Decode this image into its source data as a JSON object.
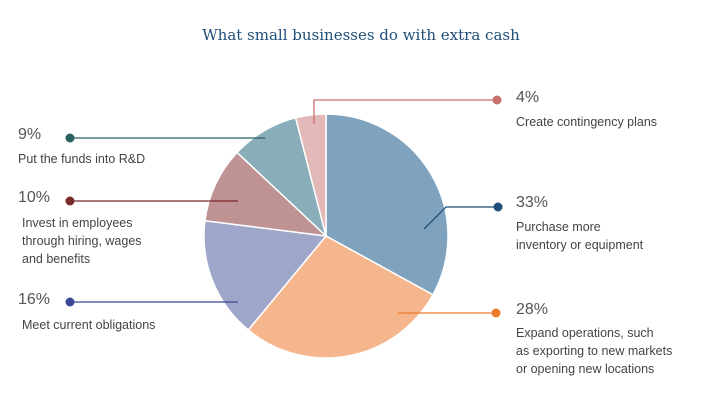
{
  "chart_data": {
    "type": "pie",
    "title": "What small businesses do with extra cash",
    "slices": [
      {
        "label": "Purchase more\ninventory or equipment",
        "value": 33,
        "pct_label": "33%",
        "color": "#7fa3bf"
      },
      {
        "label": "Expand operations, such\nas exporting to new markets\nor opening new locations",
        "value": 28,
        "pct_label": "28%",
        "color": "#f5b68e"
      },
      {
        "label": "Meet current obligations",
        "value": 16,
        "pct_label": "16%",
        "color": "#9ea7ca"
      },
      {
        "label": "Invest in employees\nthrough hiring, wages\nand benefits",
        "value": 10,
        "pct_label": "10%",
        "color": "#bf9293"
      },
      {
        "label": "Put the funds into R&D",
        "value": 9,
        "pct_label": "9%",
        "color": "#8aaeb9"
      },
      {
        "label": "Create contingency plans",
        "value": 4,
        "pct_label": "4%",
        "color": "#e2b9b8"
      }
    ],
    "marker_colors": [
      "#1f4e79",
      "#ef7b2d",
      "#3b4a96",
      "#7a2a2a",
      "#2a6060",
      "#c8706a"
    ]
  }
}
